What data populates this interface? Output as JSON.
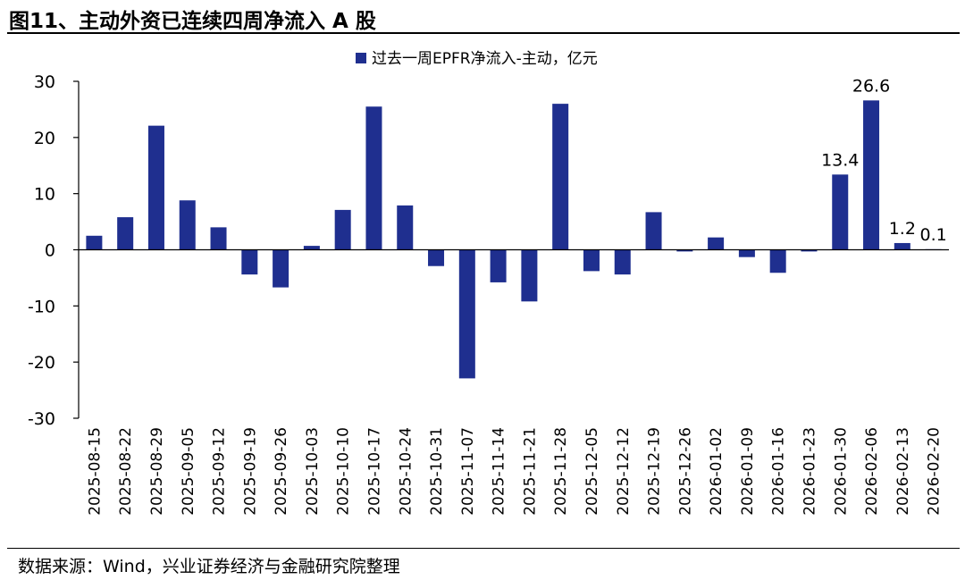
{
  "title": "图11、主动外资已连续四周净流入 A 股",
  "source": "数据来源：Wind，兴业证券经济与金融研究院整理",
  "colors": {
    "bar": "#1f2f8f",
    "axis": "#000000"
  },
  "chart_data": {
    "type": "bar",
    "categories": [
      "2025-08-15",
      "2025-08-22",
      "2025-08-29",
      "2025-09-05",
      "2025-09-12",
      "2025-09-19",
      "2025-09-26",
      "2025-10-03",
      "2025-10-10",
      "2025-10-17",
      "2025-10-24",
      "2025-10-31",
      "2025-11-07",
      "2025-11-14",
      "2025-11-21",
      "2025-11-28",
      "2025-12-05",
      "2025-12-12",
      "2025-12-19",
      "2025-12-26",
      "2026-01-02",
      "2026-01-09",
      "2026-01-16",
      "2026-01-23",
      "2026-01-30",
      "2026-02-06",
      "2026-02-13",
      "2026-02-20"
    ],
    "series": [
      {
        "name": "过去一周EPFR净流入-主动，亿元",
        "values": [
          2.5,
          5.8,
          22.1,
          8.8,
          4.0,
          -4.4,
          -6.7,
          0.7,
          7.1,
          25.5,
          7.9,
          -2.9,
          -22.9,
          -5.8,
          -9.2,
          26.0,
          -3.8,
          -4.4,
          6.7,
          -0.3,
          2.2,
          -1.3,
          -4.1,
          -0.3,
          13.4,
          26.6,
          1.2,
          0.1
        ]
      }
    ],
    "data_labels": [
      {
        "category": "2026-01-30",
        "text": "13.4"
      },
      {
        "category": "2026-02-06",
        "text": "26.6"
      },
      {
        "category": "2026-02-13",
        "text": "1.2"
      },
      {
        "category": "2026-02-20",
        "text": "0.1"
      }
    ],
    "yticks": [
      "30",
      "20",
      "10",
      "0",
      "-10",
      "-20",
      "-30"
    ],
    "ylim": [
      -30,
      30
    ],
    "grid": false,
    "legend_position": "top-center"
  }
}
